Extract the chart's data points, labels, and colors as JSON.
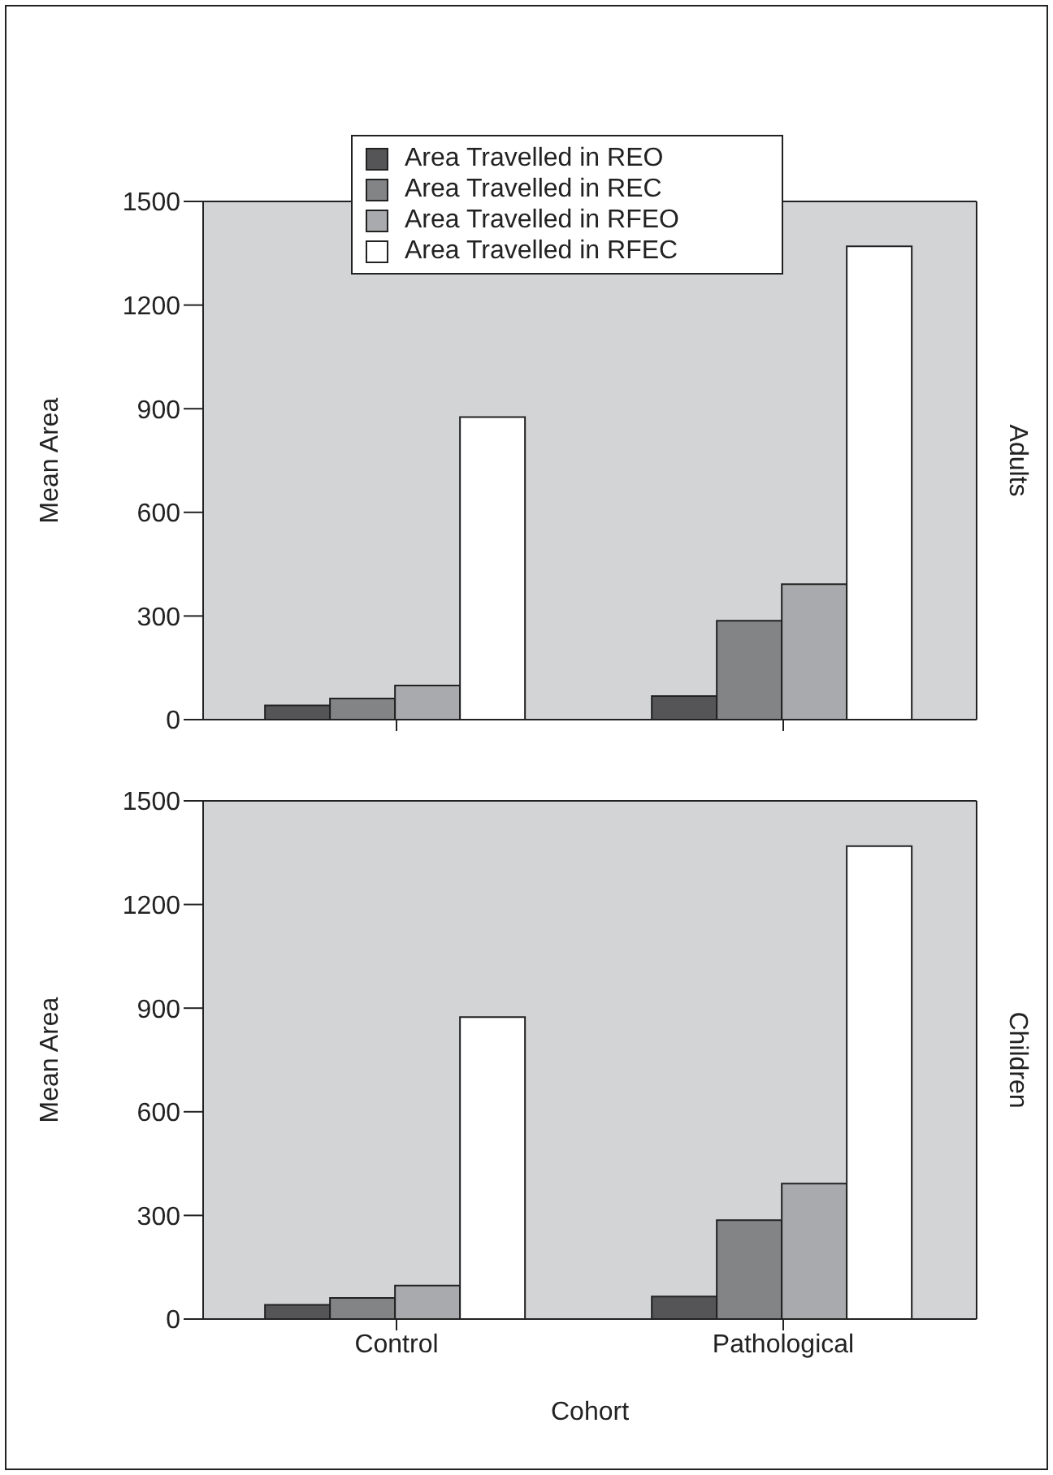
{
  "chart_data": [
    {
      "type": "bar",
      "annotations": [
        "Adults"
      ],
      "ylabel": "Mean Area",
      "categories": [
        null,
        null
      ],
      "ylim": [
        0,
        1500
      ],
      "yticks": [
        0,
        300,
        600,
        900,
        1200,
        1500
      ],
      "legend": "top",
      "tick_labels": "y",
      "series": [
        {
          "name": "Area Travelled in REO",
          "color": "#555557",
          "values": [
            41,
            68
          ]
        },
        {
          "name": "Area Travelled in REC",
          "color": "#838486",
          "values": [
            61,
            286
          ]
        },
        {
          "name": "Area Travelled in RFEO",
          "color": "#a9aaad",
          "values": [
            99,
            392
          ]
        },
        {
          "name": "Area Travelled in RFEC",
          "color": "#ffffff",
          "values": [
            876,
            1370
          ]
        }
      ]
    },
    {
      "type": "bar",
      "annotations": [
        "Children"
      ],
      "ylabel": "Mean Area",
      "xlabel": "Cohort",
      "categories": [
        "Control",
        "Pathological"
      ],
      "ylim": [
        0,
        1500
      ],
      "yticks": [
        0,
        300,
        600,
        900,
        1200,
        1500
      ],
      "series": [
        {
          "color": "#555557",
          "values": [
            41,
            65
          ]
        },
        {
          "color": "#838486",
          "values": [
            61,
            286
          ]
        },
        {
          "color": "#a9aaad",
          "values": [
            97,
            392
          ]
        },
        {
          "color": "#ffffff",
          "values": [
            874,
            1369
          ]
        }
      ]
    }
  ]
}
